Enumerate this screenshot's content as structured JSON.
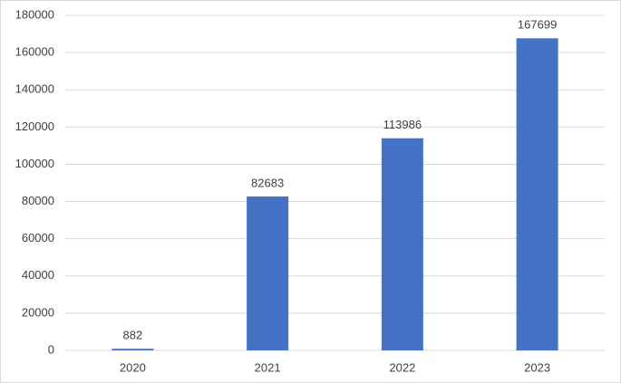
{
  "chart_data": {
    "type": "bar",
    "categories": [
      "2020",
      "2021",
      "2022",
      "2023"
    ],
    "values": [
      882,
      82683,
      113986,
      167699
    ],
    "color": "#4472c4",
    "ylim": [
      0,
      180000
    ],
    "yticks": [
      0,
      20000,
      40000,
      60000,
      80000,
      100000,
      120000,
      140000,
      160000,
      180000
    ],
    "grid": true,
    "data_labels": true
  }
}
